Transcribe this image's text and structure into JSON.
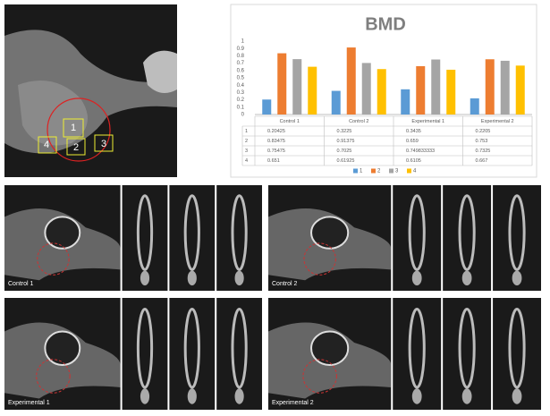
{
  "chart_data": {
    "type": "bar",
    "title": "BMD",
    "categories": [
      "Control 1",
      "Control 2",
      "Experimental 1",
      "Experimental 2"
    ],
    "series": [
      {
        "name": "1",
        "color": "#5b9bd5",
        "values": [
          0.20425,
          0.3225,
          0.3435,
          0.2205
        ]
      },
      {
        "name": "2",
        "color": "#ed7d31",
        "values": [
          0.83475,
          0.91375,
          0.659,
          0.753
        ]
      },
      {
        "name": "3",
        "color": "#a5a5a5",
        "values": [
          0.75475,
          0.7025,
          0.749833333,
          0.7325
        ]
      },
      {
        "name": "4",
        "color": "#ffc000",
        "values": [
          0.651,
          0.61925,
          0.6105,
          0.667
        ]
      }
    ],
    "ylim": [
      0,
      1
    ],
    "yticks": [
      0,
      0.1,
      0.2,
      0.3,
      0.4,
      0.5,
      0.6,
      0.7,
      0.8,
      0.9,
      1
    ],
    "grid": false,
    "legend": "bottom",
    "data_table": true
  },
  "figure": {
    "roi_labels": [
      "1",
      "2",
      "3",
      "4"
    ],
    "panels": [
      "Control 1",
      "Control 2",
      "Experimental 1",
      "Experimental 2"
    ]
  }
}
